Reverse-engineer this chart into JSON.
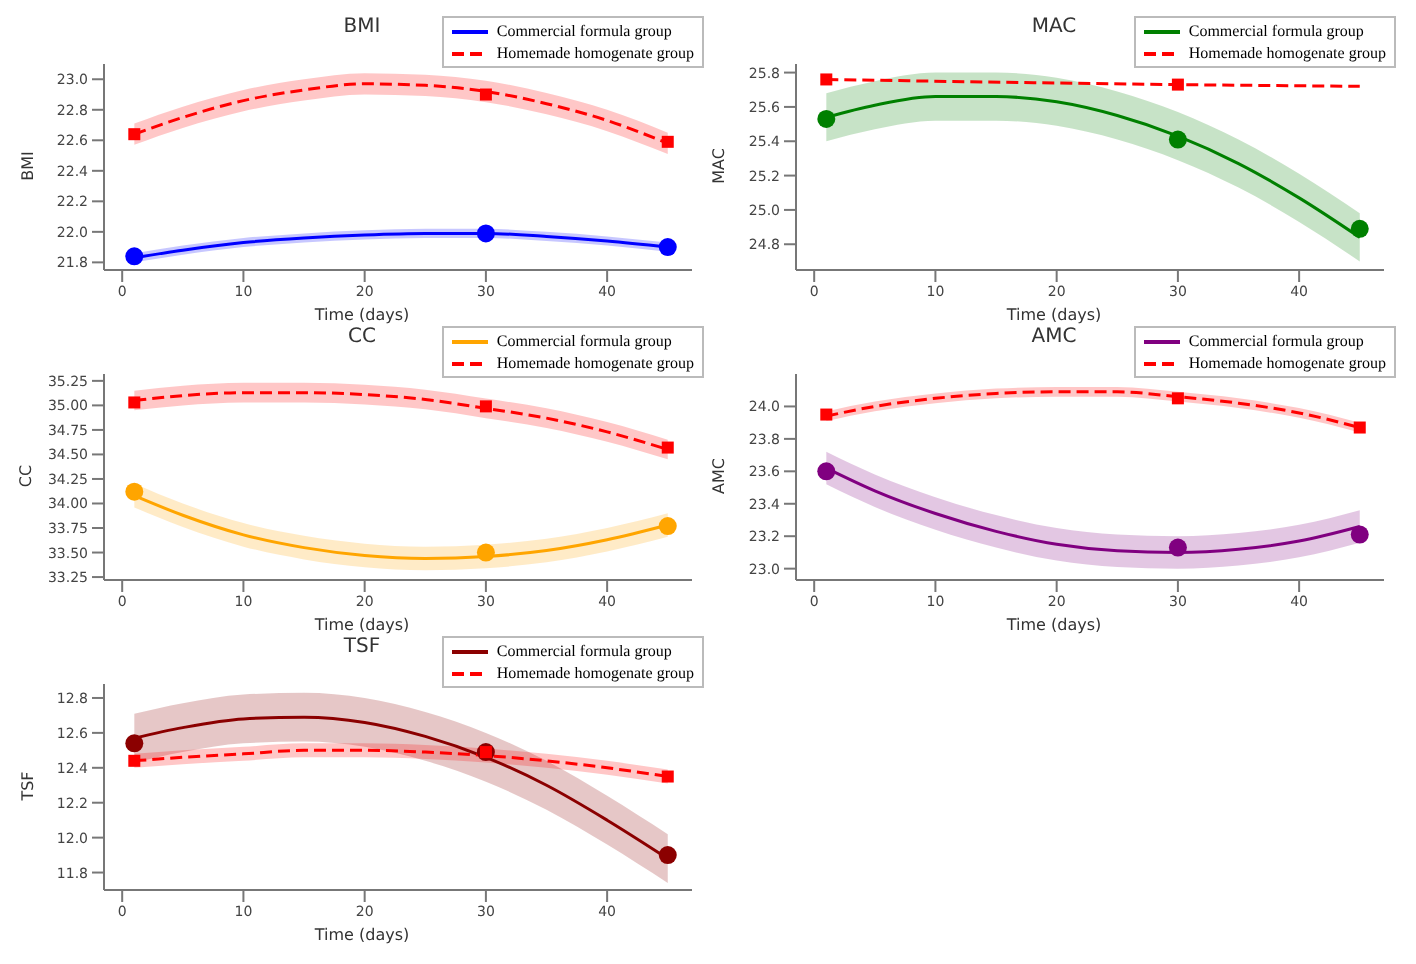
{
  "chart_data": [
    {
      "type": "line",
      "title": "BMI",
      "xlabel": "Time (days)",
      "ylabel": "BMI",
      "x": [
        1,
        5,
        10,
        15,
        20,
        25,
        30,
        35,
        40,
        45
      ],
      "xlim": [
        -1.5,
        47
      ],
      "xticks": [
        0,
        10,
        20,
        30,
        40
      ],
      "ylim": [
        21.75,
        23.1
      ],
      "yticks": [
        21.8,
        {
          "value": 22,
          "label": "22.0"
        },
        22.2,
        22.4,
        22.6,
        22.8,
        {
          "value": 23,
          "label": "23.0"
        }
      ],
      "legend": "top right",
      "series": [
        {
          "name": "Commercial formula group",
          "type": "line",
          "color": "#0000ff",
          "line_style": "solid",
          "values": [
            21.83,
            21.88,
            21.93,
            21.96,
            21.98,
            21.99,
            21.99,
            21.97,
            21.94,
            21.9
          ],
          "lower": [
            21.8,
            21.85,
            21.9,
            21.93,
            21.95,
            21.96,
            21.96,
            21.94,
            21.91,
            21.87
          ],
          "upper": [
            21.86,
            21.91,
            21.96,
            21.99,
            22.01,
            22.02,
            22.02,
            22.0,
            21.97,
            21.93
          ]
        },
        {
          "name": "Homemade homogenate group",
          "type": "line",
          "color": "#ff0000",
          "line_style": "dashed",
          "values": [
            22.64,
            22.75,
            22.86,
            22.93,
            22.97,
            22.96,
            22.92,
            22.84,
            22.73,
            22.58
          ],
          "lower": [
            22.57,
            22.68,
            22.79,
            22.86,
            22.9,
            22.89,
            22.85,
            22.77,
            22.66,
            22.51
          ],
          "upper": [
            22.71,
            22.82,
            22.93,
            23.0,
            23.04,
            23.03,
            22.99,
            22.91,
            22.8,
            22.65
          ]
        },
        {
          "type": "scatter",
          "color": "#0000ff",
          "marker": "circle",
          "x": [
            1,
            30,
            45
          ],
          "values": [
            21.84,
            21.99,
            21.9
          ]
        },
        {
          "type": "scatter",
          "color": "#ff0000",
          "marker": "square",
          "x": [
            1,
            30,
            45
          ],
          "values": [
            22.64,
            22.9,
            22.59
          ]
        }
      ]
    },
    {
      "type": "line",
      "title": "MAC",
      "xlabel": "Time (days)",
      "ylabel": "MAC",
      "x": [
        1,
        5,
        10,
        15,
        20,
        25,
        30,
        35,
        40,
        45
      ],
      "xlim": [
        -1.5,
        47
      ],
      "xticks": [
        0,
        10,
        20,
        30,
        40
      ],
      "ylim": [
        24.65,
        25.85
      ],
      "yticks": [
        24.8,
        {
          "value": 25,
          "label": "25.0"
        },
        25.2,
        25.4,
        25.6,
        25.8
      ],
      "legend": "top right",
      "series": [
        {
          "name": "Commercial formula group",
          "type": "line",
          "color": "#008000",
          "line_style": "solid",
          "values": [
            25.54,
            25.61,
            25.66,
            25.66,
            25.63,
            25.55,
            25.43,
            25.27,
            25.07,
            24.84
          ],
          "lower": [
            25.4,
            25.47,
            25.52,
            25.52,
            25.49,
            25.41,
            25.29,
            25.13,
            24.93,
            24.7
          ],
          "upper": [
            25.68,
            25.75,
            25.8,
            25.8,
            25.77,
            25.69,
            25.57,
            25.41,
            25.21,
            24.98
          ]
        },
        {
          "name": "Homemade homogenate group",
          "type": "line",
          "color": "#ff0000",
          "line_style": "dashed",
          "x": [
            1,
            30,
            45
          ],
          "values": [
            25.76,
            25.73,
            25.72
          ]
        },
        {
          "type": "scatter",
          "color": "#008000",
          "marker": "circle",
          "x": [
            1,
            30,
            45
          ],
          "values": [
            25.53,
            25.41,
            24.89
          ]
        },
        {
          "type": "scatter",
          "color": "#ff0000",
          "marker": "square",
          "x": [
            1,
            30
          ],
          "values": [
            25.76,
            25.73
          ]
        }
      ]
    },
    {
      "type": "line",
      "title": "CC",
      "xlabel": "Time (days)",
      "ylabel": "CC",
      "x": [
        1,
        5,
        10,
        15,
        20,
        25,
        30,
        35,
        40,
        45
      ],
      "xlim": [
        -1.5,
        47
      ],
      "xticks": [
        0,
        10,
        20,
        30,
        40
      ],
      "ylim": [
        33.22,
        35.32
      ],
      "yticks": [
        33.25,
        {
          "value": 33.5,
          "label": "33.50"
        },
        33.75,
        {
          "value": 34,
          "label": "34.00"
        },
        34.25,
        {
          "value": 34.5,
          "label": "34.50"
        },
        34.75,
        {
          "value": 35,
          "label": "35.00"
        },
        35.25
      ],
      "legend": "top right",
      "series": [
        {
          "name": "Commercial formula group",
          "type": "line",
          "color": "#ffa500",
          "line_style": "solid",
          "values": [
            34.08,
            33.88,
            33.68,
            33.55,
            33.47,
            33.44,
            33.46,
            33.52,
            33.63,
            33.78
          ],
          "lower": [
            33.96,
            33.76,
            33.56,
            33.43,
            33.35,
            33.32,
            33.34,
            33.4,
            33.51,
            33.66
          ],
          "upper": [
            34.2,
            34.0,
            33.8,
            33.67,
            33.59,
            33.56,
            33.58,
            33.64,
            33.75,
            33.9
          ]
        },
        {
          "name": "Homemade homogenate group",
          "type": "line",
          "color": "#ff0000",
          "line_style": "dashed",
          "values": [
            35.05,
            35.1,
            35.13,
            35.13,
            35.11,
            35.06,
            34.97,
            34.87,
            34.73,
            34.55
          ],
          "lower": [
            34.95,
            35.0,
            35.03,
            35.03,
            35.01,
            34.96,
            34.87,
            34.77,
            34.63,
            34.45
          ],
          "upper": [
            35.15,
            35.2,
            35.23,
            35.23,
            35.21,
            35.16,
            35.07,
            34.97,
            34.83,
            34.65
          ]
        },
        {
          "type": "scatter",
          "color": "#ffa500",
          "marker": "circle",
          "x": [
            1,
            30,
            45
          ],
          "values": [
            34.12,
            33.5,
            33.77
          ]
        },
        {
          "type": "scatter",
          "color": "#ff0000",
          "marker": "square",
          "x": [
            1,
            30,
            45
          ],
          "values": [
            35.03,
            34.99,
            34.57
          ]
        }
      ]
    },
    {
      "type": "line",
      "title": "AMC",
      "xlabel": "Time (days)",
      "ylabel": "AMC",
      "x": [
        1,
        5,
        10,
        15,
        20,
        25,
        30,
        35,
        40,
        45
      ],
      "xlim": [
        -1.5,
        47
      ],
      "xticks": [
        0,
        10,
        20,
        30,
        40
      ],
      "ylim": [
        22.93,
        24.2
      ],
      "yticks": [
        {
          "value": 23,
          "label": "23.0"
        },
        23.2,
        23.4,
        23.6,
        23.8,
        {
          "value": 24,
          "label": "24.0"
        }
      ],
      "legend": "top right",
      "series": [
        {
          "name": "Commercial formula group",
          "type": "line",
          "color": "#800080",
          "line_style": "solid",
          "values": [
            23.62,
            23.48,
            23.34,
            23.23,
            23.15,
            23.11,
            23.1,
            23.12,
            23.17,
            23.26
          ],
          "lower": [
            23.52,
            23.38,
            23.24,
            23.13,
            23.05,
            23.01,
            23.0,
            23.02,
            23.07,
            23.16
          ],
          "upper": [
            23.72,
            23.58,
            23.44,
            23.33,
            23.25,
            23.21,
            23.2,
            23.22,
            23.27,
            23.36
          ]
        },
        {
          "name": "Homemade homogenate group",
          "type": "line",
          "color": "#ff0000",
          "line_style": "dashed",
          "values": [
            23.94,
            24.0,
            24.05,
            24.08,
            24.09,
            24.09,
            24.06,
            24.02,
            23.96,
            23.87
          ],
          "lower": [
            23.91,
            23.97,
            24.02,
            24.05,
            24.06,
            24.06,
            24.03,
            23.99,
            23.93,
            23.84
          ],
          "upper": [
            23.97,
            24.03,
            24.08,
            24.11,
            24.12,
            24.12,
            24.09,
            24.05,
            23.99,
            23.9
          ]
        },
        {
          "type": "scatter",
          "color": "#800080",
          "marker": "circle",
          "x": [
            1,
            30,
            45
          ],
          "values": [
            23.6,
            23.13,
            23.21
          ]
        },
        {
          "type": "scatter",
          "color": "#ff0000",
          "marker": "square",
          "x": [
            1,
            30,
            45
          ],
          "values": [
            23.95,
            24.05,
            23.87
          ]
        }
      ]
    },
    {
      "type": "line",
      "title": "TSF",
      "xlabel": "Time (days)",
      "ylabel": "TSF",
      "x": [
        1,
        5,
        10,
        15,
        20,
        25,
        30,
        35,
        40,
        45
      ],
      "xlim": [
        -1.5,
        47
      ],
      "xticks": [
        0,
        10,
        20,
        30,
        40
      ],
      "ylim": [
        11.7,
        12.88
      ],
      "yticks": [
        11.8,
        {
          "value": 12,
          "label": "12.0"
        },
        12.2,
        12.4,
        12.6,
        12.8
      ],
      "legend": "top right",
      "series": [
        {
          "name": "Commercial formula group",
          "type": "line",
          "color": "#8b0000",
          "line_style": "solid",
          "values": [
            12.57,
            12.63,
            12.68,
            12.69,
            12.66,
            12.58,
            12.46,
            12.3,
            12.1,
            11.88
          ],
          "lower": [
            12.43,
            12.49,
            12.54,
            12.55,
            12.52,
            12.44,
            12.32,
            12.16,
            11.96,
            11.74
          ],
          "upper": [
            12.71,
            12.77,
            12.82,
            12.83,
            12.8,
            12.72,
            12.6,
            12.44,
            12.24,
            12.02
          ]
        },
        {
          "name": "Homemade homogenate group",
          "type": "line",
          "color": "#ff0000",
          "line_style": "dashed",
          "values": [
            12.44,
            12.46,
            12.48,
            12.5,
            12.5,
            12.49,
            12.47,
            12.44,
            12.4,
            12.35
          ],
          "lower": [
            12.4,
            12.42,
            12.44,
            12.46,
            12.46,
            12.45,
            12.43,
            12.4,
            12.36,
            12.31
          ],
          "upper": [
            12.48,
            12.5,
            12.52,
            12.54,
            12.54,
            12.53,
            12.51,
            12.48,
            12.44,
            12.39
          ]
        },
        {
          "type": "scatter",
          "color": "#8b0000",
          "marker": "circle",
          "x": [
            1,
            30,
            45
          ],
          "values": [
            12.54,
            12.49,
            11.9
          ]
        },
        {
          "type": "scatter",
          "color": "#ff0000",
          "marker": "square",
          "x": [
            1,
            30,
            45
          ],
          "values": [
            12.44,
            12.49,
            12.35
          ]
        }
      ]
    }
  ]
}
